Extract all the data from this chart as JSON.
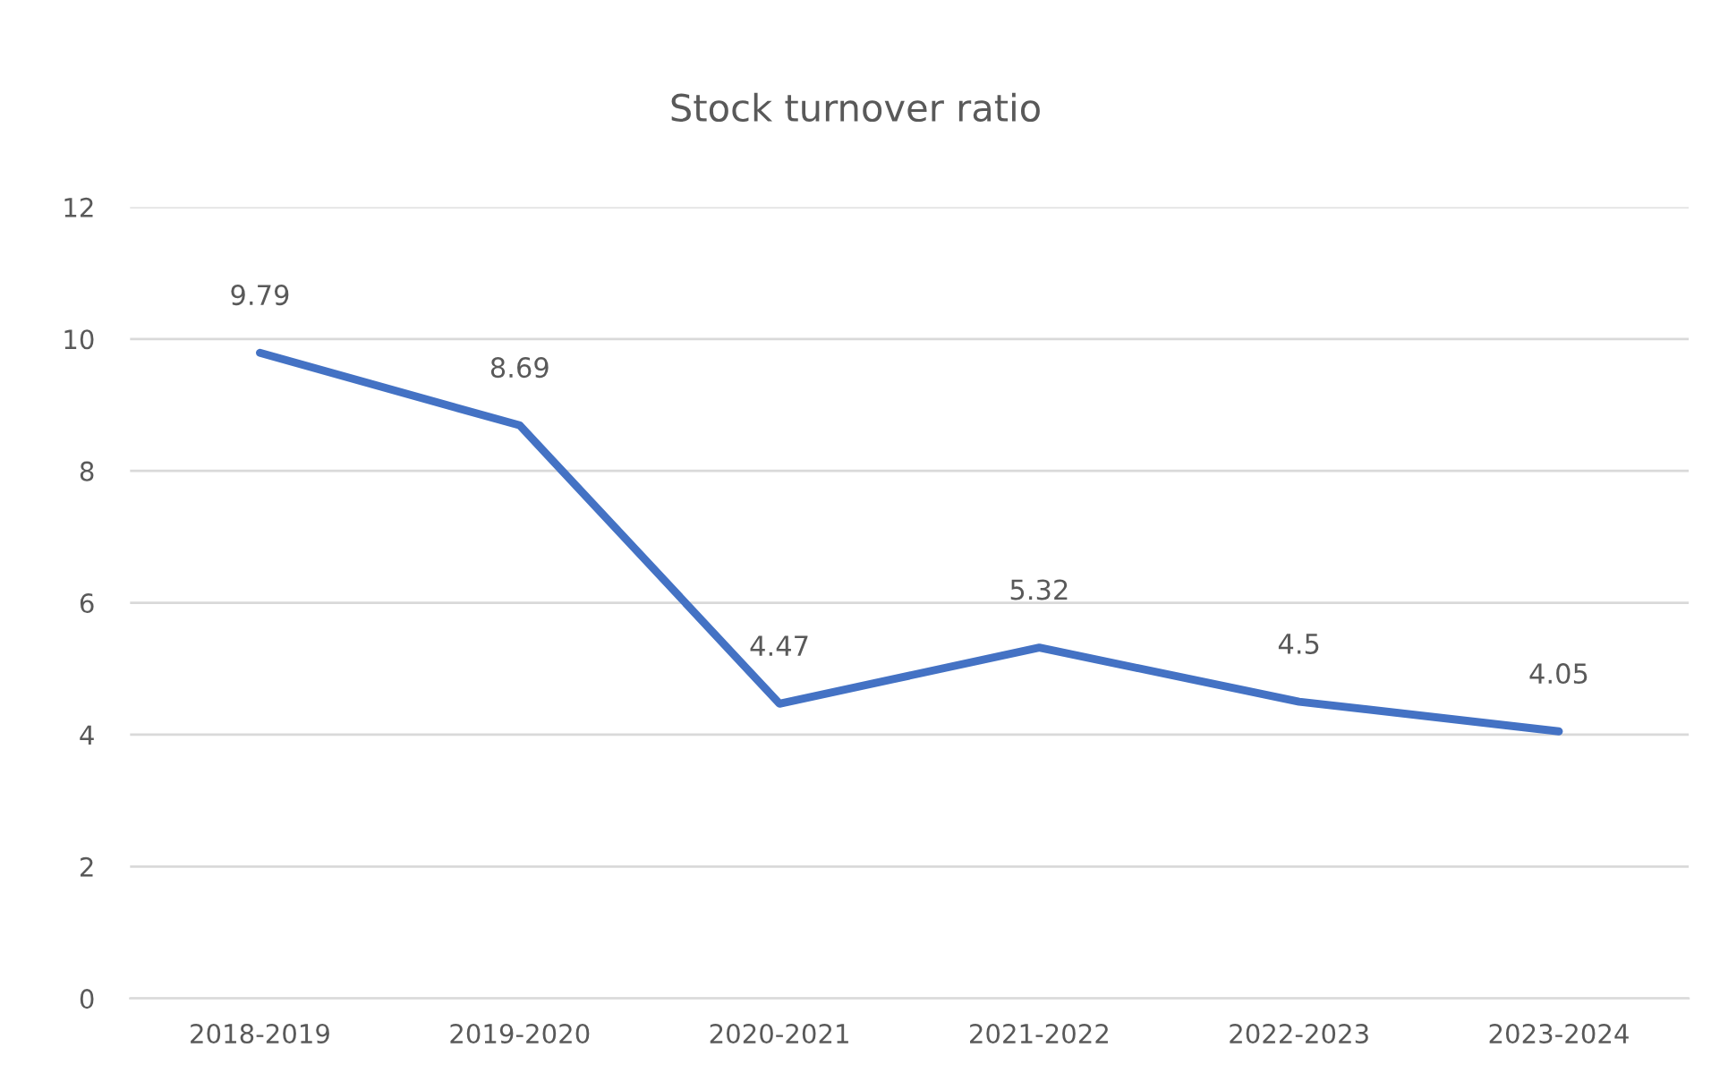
{
  "chart_data": {
    "type": "line",
    "title": "Stock turnover ratio",
    "categories": [
      "2018-2019",
      "2019-2020",
      "2020-2021",
      "2021-2022",
      "2022-2023",
      "2023-2024"
    ],
    "series": [
      {
        "color": "#4472c4",
        "values": [
          9.79,
          8.69,
          4.47,
          5.32,
          4.5,
          4.05
        ]
      }
    ],
    "ylim": [
      0,
      12
    ],
    "yticks": [
      0,
      2,
      4,
      6,
      8,
      10,
      12
    ],
    "grid": "y",
    "data_labels": true,
    "marker": "none",
    "line_style": "solid"
  }
}
